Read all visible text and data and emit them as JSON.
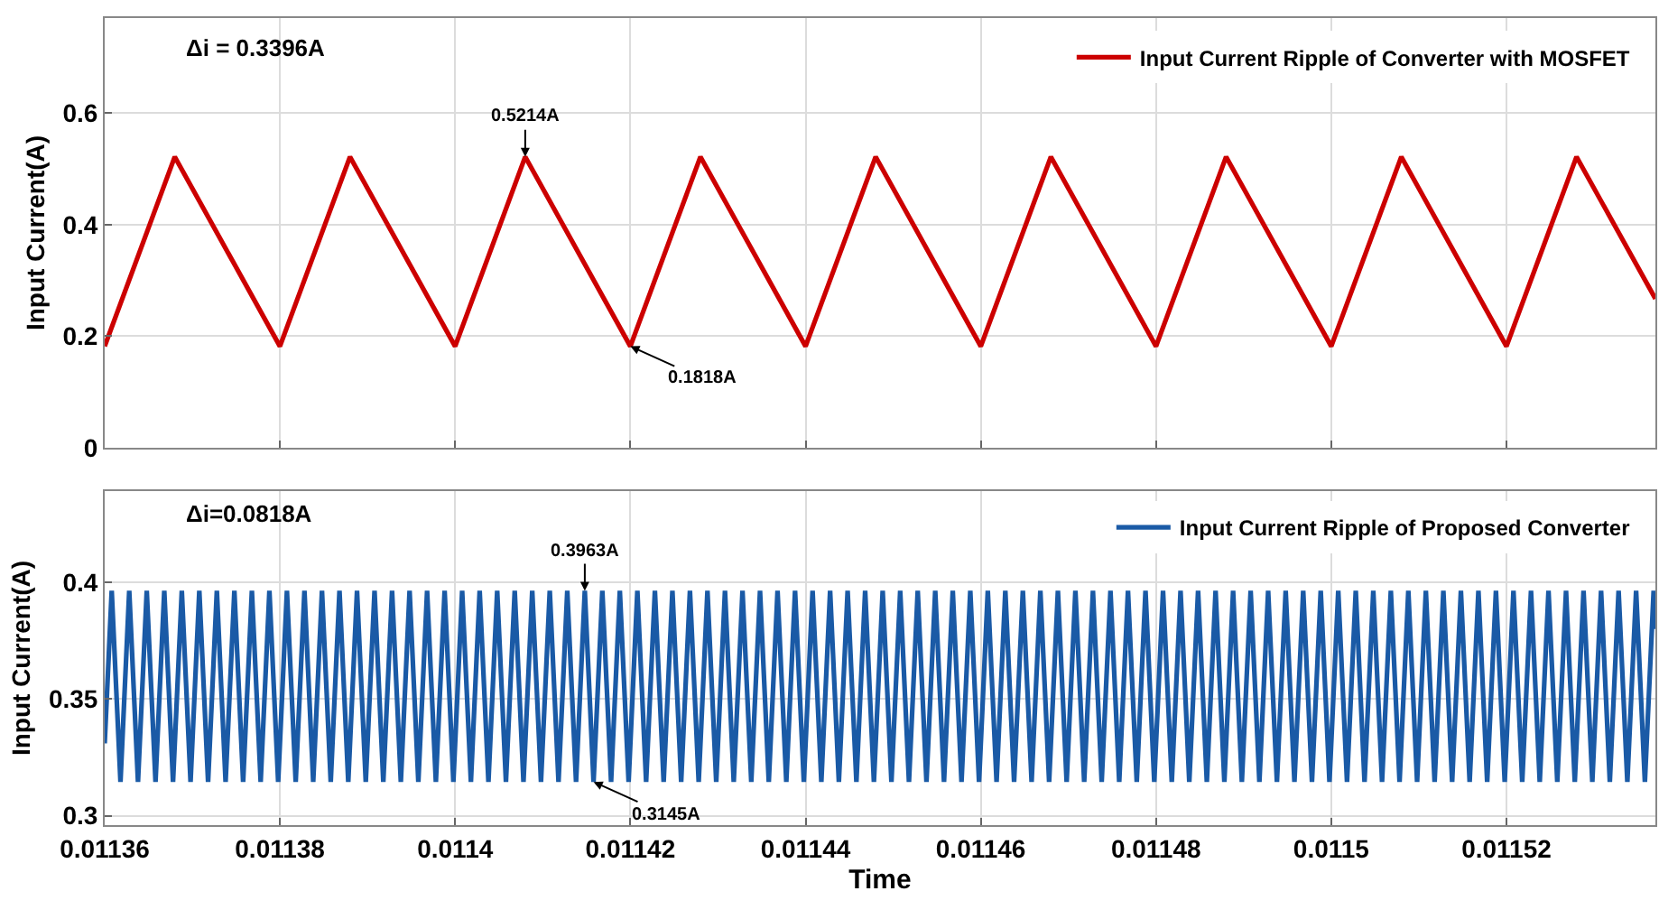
{
  "chart_data": [
    {
      "type": "line",
      "ylabel": "Input Current(A)",
      "annotations": [
        "Δi = 0.3396A",
        {
          "text": "0.5214A",
          "x": 0.011408,
          "y": 0.5214
        },
        {
          "text": "0.1818A",
          "x": 0.01142,
          "y": 0.1818
        }
      ],
      "x": [
        0.01136,
        0.011368,
        0.01138,
        0.011388,
        0.0114,
        0.011408,
        0.01142,
        0.011428,
        0.01144,
        0.011448,
        0.01146,
        0.011468,
        0.01148,
        0.011488,
        0.0115,
        0.011508,
        0.01152,
        0.011528,
        0.011537
      ],
      "series": [
        {
          "name": "Input Current Ripple of Converter with MOSFET",
          "color": "#cc0000",
          "values": [
            0.1818,
            0.5214,
            0.1818,
            0.5214,
            0.1818,
            0.5214,
            0.1818,
            0.5214,
            0.1818,
            0.5214,
            0.1818,
            0.5214,
            0.1818,
            0.5214,
            0.1818,
            0.5214,
            0.1818,
            0.5214,
            0.267
          ]
        }
      ],
      "xlim": [
        0.01136,
        0.011537
      ],
      "xticks": [
        0.01136,
        0.01138,
        0.0114,
        0.01142,
        0.01144,
        0.01146,
        0.01148,
        0.0115,
        0.01152
      ],
      "ylim": [
        0,
        0.77
      ],
      "yticks": [
        0,
        0.2,
        0.4,
        0.6
      ],
      "grid": true,
      "legend": "top right",
      "tick_labels": "y",
      "line_style": "solid"
    },
    {
      "type": "line",
      "xlabel": "Time",
      "ylabel": "Input Current(A)",
      "annotations": [
        "Δi=0.0818A",
        {
          "text": "0.3963A",
          "x": 0.0114148,
          "y": 0.3963
        },
        {
          "text": "0.3145A",
          "x": 0.0114158,
          "y": 0.3145
        }
      ],
      "x": [
        0.01136,
        0.0113608,
        0.0113618,
        0.0113628,
        0.0113638,
        0.0113648,
        0.0113658,
        0.0113668,
        0.0113678,
        0.0113688,
        0.0113698,
        0.0113708,
        0.0113718,
        0.0113728,
        0.0113738,
        0.0113748,
        0.0113758,
        0.0113768,
        0.0113778,
        0.0113788,
        0.0113798,
        0.0113808,
        0.0113818,
        0.0113828,
        0.0113838,
        0.0113848,
        0.0113858,
        0.0113868,
        0.0113878,
        0.0113888,
        0.0113898,
        0.0113908,
        0.0113918,
        0.0113928,
        0.0113938,
        0.0113948,
        0.0113958,
        0.0113968,
        0.0113978,
        0.0113988,
        0.0113998,
        0.0114008,
        0.0114018,
        0.0114028,
        0.0114038,
        0.0114048,
        0.0114058,
        0.0114068,
        0.0114078,
        0.0114088,
        0.0114098,
        0.0114108,
        0.0114118,
        0.0114128,
        0.0114138,
        0.0114148,
        0.0114158,
        0.0114168,
        0.0114178,
        0.0114188,
        0.0114198,
        0.0114208,
        0.0114218,
        0.0114228,
        0.0114238,
        0.0114248,
        0.0114258,
        0.0114268,
        0.0114278,
        0.0114288,
        0.0114298,
        0.0114308,
        0.0114318,
        0.0114328,
        0.0114338,
        0.0114348,
        0.0114358,
        0.0114368,
        0.0114378,
        0.0114388,
        0.0114398,
        0.0114408,
        0.0114418,
        0.0114428,
        0.0114438,
        0.0114448,
        0.0114458,
        0.0114468,
        0.0114478,
        0.0114488,
        0.0114498,
        0.0114508,
        0.0114518,
        0.0114528,
        0.0114538,
        0.0114548,
        0.0114558,
        0.0114568,
        0.0114578,
        0.0114588,
        0.0114598,
        0.0114608,
        0.0114618,
        0.0114628,
        0.0114638,
        0.0114648,
        0.0114658,
        0.0114668,
        0.0114678,
        0.0114688,
        0.0114698,
        0.0114708,
        0.0114718,
        0.0114728,
        0.0114738,
        0.0114748,
        0.0114758,
        0.0114768,
        0.0114778,
        0.0114788,
        0.0114798,
        0.0114808,
        0.0114818,
        0.0114828,
        0.0114838,
        0.0114848,
        0.0114858,
        0.0114868,
        0.0114878,
        0.0114888,
        0.0114898,
        0.0114908,
        0.0114918,
        0.0114928,
        0.0114938,
        0.0114948,
        0.0114958,
        0.0114968,
        0.0114978,
        0.0114988,
        0.0114998,
        0.0115008,
        0.0115018,
        0.0115028,
        0.0115038,
        0.0115048,
        0.0115058,
        0.0115068,
        0.0115078,
        0.0115088,
        0.0115098,
        0.0115108,
        0.0115118,
        0.0115128,
        0.0115138,
        0.0115148,
        0.0115158,
        0.0115168,
        0.0115178,
        0.0115188,
        0.0115198,
        0.0115208,
        0.0115218,
        0.0115228,
        0.0115238,
        0.0115248,
        0.0115258,
        0.0115268,
        0.0115278,
        0.0115288,
        0.0115298,
        0.0115308,
        0.0115318,
        0.0115328,
        0.0115338,
        0.0115348,
        0.0115358,
        0.0115368,
        0.011537
      ],
      "series": [
        {
          "name": "Input Current Ripple of Proposed Converter",
          "color": "#1a5aa6",
          "values": [
            0.331,
            0.3963,
            0.3145,
            0.3963,
            0.3145,
            0.3963,
            0.3145,
            0.3963,
            0.3145,
            0.3963,
            0.3145,
            0.3963,
            0.3145,
            0.3963,
            0.3145,
            0.3963,
            0.3145,
            0.3963,
            0.3145,
            0.3963,
            0.3145,
            0.3963,
            0.3145,
            0.3963,
            0.3145,
            0.3963,
            0.3145,
            0.3963,
            0.3145,
            0.3963,
            0.3145,
            0.3963,
            0.3145,
            0.3963,
            0.3145,
            0.3963,
            0.3145,
            0.3963,
            0.3145,
            0.3963,
            0.3145,
            0.3963,
            0.3145,
            0.3963,
            0.3145,
            0.3963,
            0.3145,
            0.3963,
            0.3145,
            0.3963,
            0.3145,
            0.3963,
            0.3145,
            0.3963,
            0.3145,
            0.3963,
            0.3145,
            0.3963,
            0.3145,
            0.3963,
            0.3145,
            0.3963,
            0.3145,
            0.3963,
            0.3145,
            0.3963,
            0.3145,
            0.3963,
            0.3145,
            0.3963,
            0.3145,
            0.3963,
            0.3145,
            0.3963,
            0.3145,
            0.3963,
            0.3145,
            0.3963,
            0.3145,
            0.3963,
            0.3145,
            0.3963,
            0.3145,
            0.3963,
            0.3145,
            0.3963,
            0.3145,
            0.3963,
            0.3145,
            0.3963,
            0.3145,
            0.3963,
            0.3145,
            0.3963,
            0.3145,
            0.3963,
            0.3145,
            0.3963,
            0.3145,
            0.3963,
            0.3145,
            0.3963,
            0.3145,
            0.3963,
            0.3145,
            0.3963,
            0.3145,
            0.3963,
            0.3145,
            0.3963,
            0.3145,
            0.3963,
            0.3145,
            0.3963,
            0.3145,
            0.3963,
            0.3145,
            0.3963,
            0.3145,
            0.3963,
            0.3145,
            0.3963,
            0.3145,
            0.3963,
            0.3145,
            0.3963,
            0.3145,
            0.3963,
            0.3145,
            0.3963,
            0.3145,
            0.3963,
            0.3145,
            0.3963,
            0.3145,
            0.3963,
            0.3145,
            0.3963,
            0.3145,
            0.3963,
            0.3145,
            0.3963,
            0.3145,
            0.3963,
            0.3145,
            0.3963,
            0.3145,
            0.3963,
            0.3145,
            0.3963,
            0.3145,
            0.3963,
            0.3145,
            0.3963,
            0.3145,
            0.3963,
            0.3145,
            0.3963,
            0.3145,
            0.3963,
            0.3145,
            0.3963,
            0.3145,
            0.3963,
            0.3145,
            0.3963,
            0.3145,
            0.3963,
            0.3145,
            0.3963,
            0.3145,
            0.3963,
            0.3145,
            0.3963,
            0.3145,
            0.3963,
            0.3145,
            0.3963,
            0.38
          ]
        }
      ],
      "xlim": [
        0.01136,
        0.011537
      ],
      "xticks": [
        0.01136,
        0.01138,
        0.0114,
        0.01142,
        0.01144,
        0.01146,
        0.01148,
        0.0115,
        0.01152
      ],
      "ylim": [
        0.296,
        0.439
      ],
      "yticks": [
        0.3,
        0.35,
        0.4
      ],
      "grid": true,
      "legend": "top right",
      "line_style": "solid"
    }
  ]
}
